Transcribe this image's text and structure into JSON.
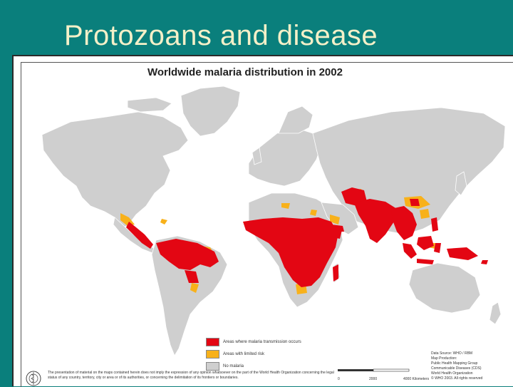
{
  "slide": {
    "title": "Protozoans and disease"
  },
  "map": {
    "title": "Worldwide malaria distribution in 2002",
    "colors": {
      "no_malaria": "#cfcfcf",
      "malaria_transmission": "#e30613",
      "limited_risk": "#f8b11a",
      "ocean": "#ffffff",
      "border": "#ffffff"
    },
    "legend": [
      {
        "label": "Areas where malaria transmission occurs",
        "color": "#e30613"
      },
      {
        "label": "Areas with limited risk",
        "color": "#f8b11a"
      },
      {
        "label": "No malaria",
        "color": "#cfcfcf"
      }
    ],
    "scale_labels": [
      "0",
      "2000",
      "4000 Kilometers"
    ],
    "credits": [
      "Data Source: WHO / RBM",
      "Map Production:",
      "Public Health Mapping Group",
      "Communicable Diseases (CDS)",
      "World Health Organization",
      "© WHO 2003. All rights reserved"
    ],
    "disclaimer": "The presentation of material on the maps contained herein does not imply the expression of any opinion whatsoever on the part of the World Health Organization concerning the legal status of any country, territory, city or area or of its authorities, or concerning the delimitation of its frontiers or boundaries."
  }
}
